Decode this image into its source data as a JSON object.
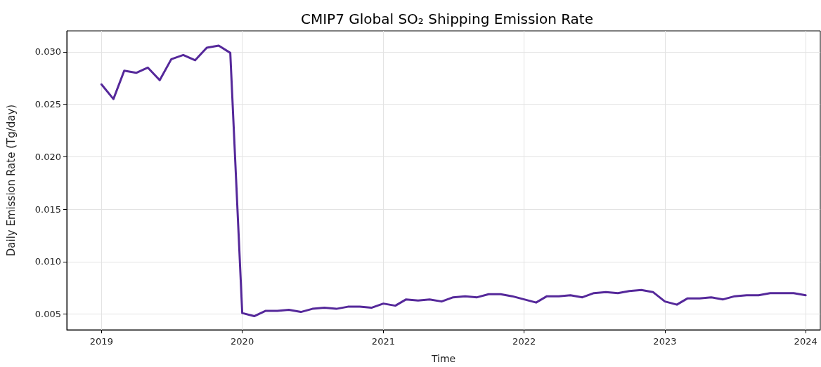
{
  "chart_data": {
    "type": "line",
    "title": "CMIP7 Global SO₂ Shipping Emission Rate",
    "xlabel": "Time",
    "ylabel": "Daily Emission Rate (Tg/day)",
    "x": [
      "2019-01",
      "2019-02",
      "2019-03",
      "2019-04",
      "2019-05",
      "2019-06",
      "2019-07",
      "2019-08",
      "2019-09",
      "2019-10",
      "2019-11",
      "2019-12",
      "2020-01",
      "2020-02",
      "2020-03",
      "2020-04",
      "2020-05",
      "2020-06",
      "2020-07",
      "2020-08",
      "2020-09",
      "2020-10",
      "2020-11",
      "2020-12",
      "2021-01",
      "2021-02",
      "2021-03",
      "2021-04",
      "2021-05",
      "2021-06",
      "2021-07",
      "2021-08",
      "2021-09",
      "2021-10",
      "2021-11",
      "2021-12",
      "2022-01",
      "2022-02",
      "2022-03",
      "2022-04",
      "2022-05",
      "2022-06",
      "2022-07",
      "2022-08",
      "2022-09",
      "2022-10",
      "2022-11",
      "2022-12",
      "2023-01",
      "2023-02",
      "2023-03",
      "2023-04",
      "2023-05",
      "2023-06",
      "2023-07",
      "2023-08",
      "2023-09",
      "2023-10",
      "2023-11",
      "2023-12",
      "2024-01"
    ],
    "series": [
      {
        "color": "#55289a",
        "values": [
          0.0269,
          0.0255,
          0.0282,
          0.028,
          0.0285,
          0.0273,
          0.0293,
          0.0297,
          0.0292,
          0.0304,
          0.0306,
          0.0299,
          0.0051,
          0.0048,
          0.0053,
          0.0053,
          0.0054,
          0.0052,
          0.0055,
          0.0056,
          0.0055,
          0.0057,
          0.0057,
          0.0056,
          0.006,
          0.0058,
          0.0064,
          0.0063,
          0.0064,
          0.0062,
          0.0066,
          0.0067,
          0.0066,
          0.0069,
          0.0069,
          0.0067,
          0.0064,
          0.0061,
          0.0067,
          0.0067,
          0.0068,
          0.0066,
          0.007,
          0.0071,
          0.007,
          0.0072,
          0.0073,
          0.0071,
          0.0062,
          0.0059,
          0.0065,
          0.0065,
          0.0066,
          0.0064,
          0.0067,
          0.0068,
          0.0068,
          0.007,
          0.007,
          0.007,
          0.0068
        ]
      }
    ],
    "xlim": [
      "2018-10-03",
      "2024-02-08"
    ],
    "xticks": [
      "2019",
      "2020",
      "2021",
      "2022",
      "2023",
      "2024"
    ],
    "ylim": [
      0.0035,
      0.032
    ],
    "yticks": [
      {
        "value": 0.005,
        "label": "0.005"
      },
      {
        "value": 0.01,
        "label": "0.010"
      },
      {
        "value": 0.015,
        "label": "0.015"
      },
      {
        "value": 0.02,
        "label": "0.020"
      },
      {
        "value": 0.025,
        "label": "0.025"
      },
      {
        "value": 0.03,
        "label": "0.030"
      }
    ],
    "grid": true,
    "line_style": "solid",
    "marker": "none"
  }
}
